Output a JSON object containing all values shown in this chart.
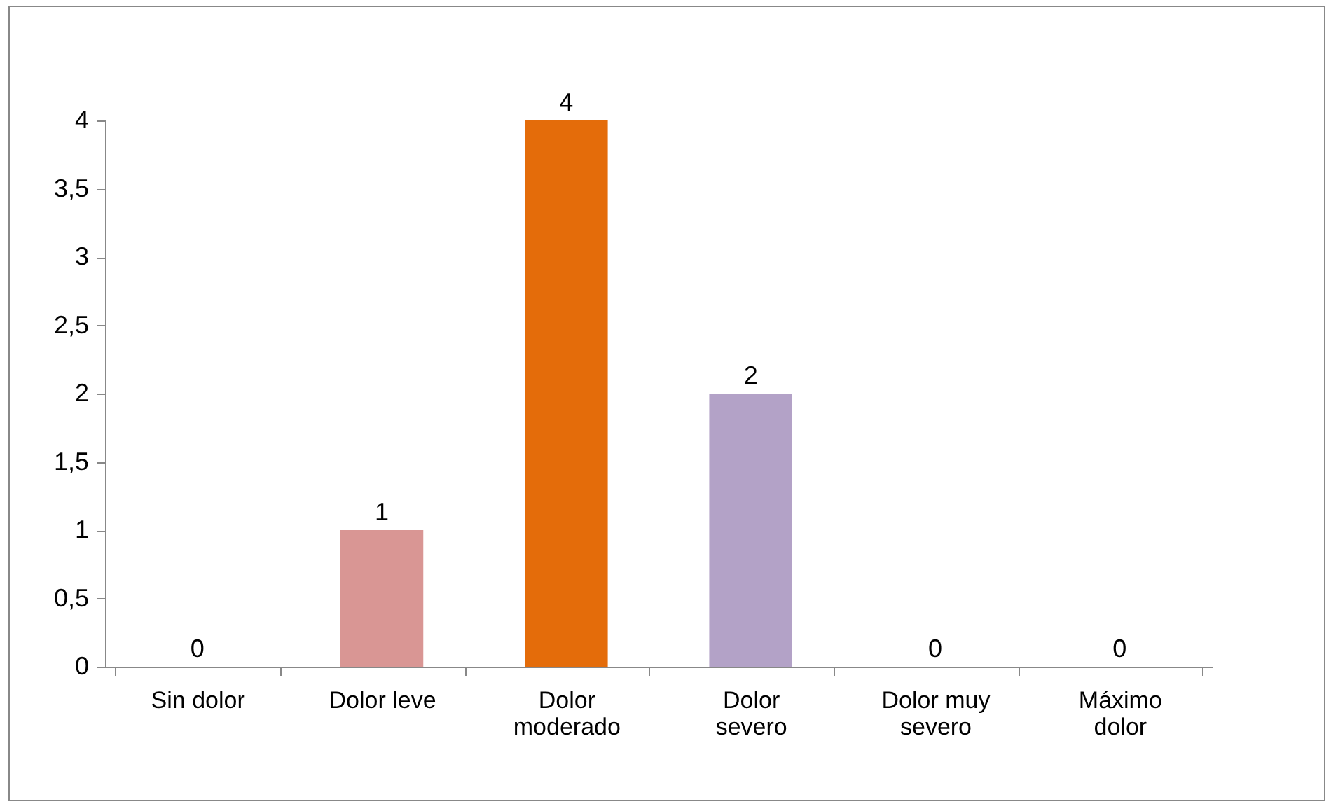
{
  "chart_data": {
    "type": "bar",
    "categories": [
      "Sin dolor",
      "Dolor leve",
      "Dolor moderado",
      "Dolor severo",
      "Dolor muy severo",
      "Máximo dolor"
    ],
    "values": [
      0,
      1,
      4,
      2,
      0,
      0
    ],
    "colors": [
      "#3f6aa0",
      "#d99694",
      "#e46c0a",
      "#b3a2c7",
      "#c00000",
      "#002060"
    ],
    "ylim": [
      0,
      4
    ],
    "yticks": [
      0,
      {
        "value": 0.5,
        "label": "0,5"
      },
      1,
      {
        "value": 1.5,
        "label": "1,5"
      },
      2,
      {
        "value": 2.5,
        "label": "2,5"
      },
      3,
      {
        "value": 3.5,
        "label": "3,5"
      },
      4
    ],
    "data_labels": true,
    "grid": false,
    "legend": false
  }
}
